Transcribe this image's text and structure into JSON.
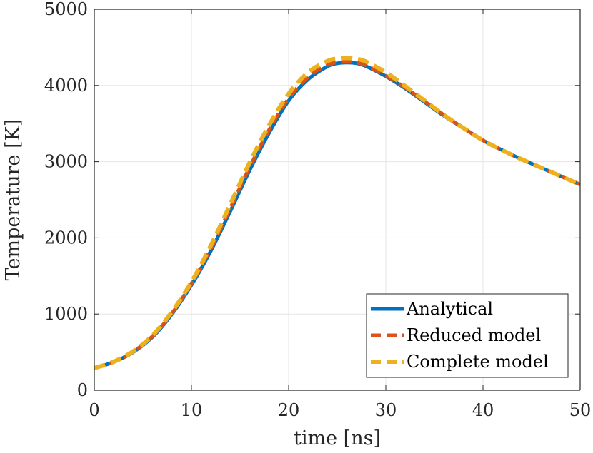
{
  "chart_data": {
    "type": "line",
    "title": "",
    "xlabel": "time [ns]",
    "ylabel": "Temperature [K]",
    "xlim": [
      0,
      50
    ],
    "ylim": [
      0,
      5000
    ],
    "xticks": [
      0,
      10,
      20,
      30,
      40,
      50
    ],
    "yticks": [
      0,
      1000,
      2000,
      3000,
      4000,
      5000
    ],
    "xtick_labels": [
      "0",
      "10",
      "20",
      "30",
      "40",
      "50"
    ],
    "ytick_labels": [
      "0",
      "1000",
      "2000",
      "3000",
      "4000",
      "5000"
    ],
    "grid": true,
    "legend_position": "bottom-right",
    "series": [
      {
        "name": "Analytical",
        "color": "#0072BD",
        "style": "solid",
        "x": [
          0,
          2,
          4,
          6,
          8,
          10,
          12,
          14,
          16,
          18,
          20,
          22,
          24,
          25,
          26,
          27,
          28,
          30,
          32,
          34,
          36,
          38,
          40,
          42,
          44,
          46,
          48,
          50
        ],
        "y": [
          290,
          370,
          500,
          700,
          1000,
          1380,
          1830,
          2350,
          2890,
          3380,
          3800,
          4080,
          4250,
          4290,
          4300,
          4290,
          4250,
          4120,
          3960,
          3780,
          3600,
          3440,
          3280,
          3150,
          3030,
          2920,
          2810,
          2700
        ]
      },
      {
        "name": "Reduced model",
        "color": "#D95319",
        "style": "dashed",
        "x": [
          0,
          2,
          4,
          6,
          8,
          10,
          12,
          14,
          16,
          18,
          20,
          22,
          24,
          25,
          26,
          27,
          28,
          30,
          32,
          34,
          36,
          38,
          40,
          42,
          44,
          46,
          48,
          50
        ],
        "y": [
          290,
          370,
          505,
          710,
          1010,
          1400,
          1860,
          2390,
          2930,
          3420,
          3830,
          4110,
          4270,
          4300,
          4310,
          4300,
          4260,
          4130,
          3970,
          3790,
          3610,
          3440,
          3280,
          3150,
          3030,
          2920,
          2810,
          2700
        ]
      },
      {
        "name": "Complete model",
        "color": "#EDB120",
        "style": "dashed",
        "x": [
          0,
          2,
          4,
          6,
          8,
          10,
          12,
          14,
          16,
          18,
          20,
          22,
          24,
          25,
          26,
          27,
          28,
          30,
          32,
          34,
          36,
          38,
          40,
          42,
          44,
          46,
          48,
          50
        ],
        "y": [
          290,
          375,
          510,
          720,
          1030,
          1420,
          1900,
          2440,
          2990,
          3480,
          3890,
          4170,
          4320,
          4350,
          4360,
          4350,
          4310,
          4170,
          3990,
          3800,
          3610,
          3440,
          3280,
          3150,
          3030,
          2920,
          2810,
          2700
        ]
      }
    ]
  }
}
